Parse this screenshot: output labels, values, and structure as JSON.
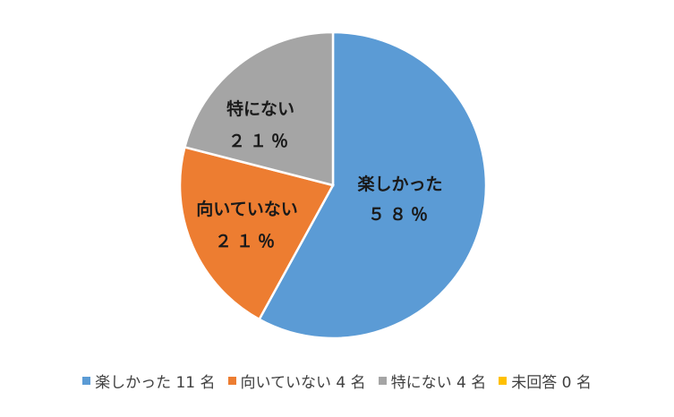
{
  "chart_data": {
    "type": "pie",
    "slices": [
      {
        "label": "楽しかった",
        "value": 58,
        "pct_text": "５８％",
        "color": "#5b9bd5",
        "legend": "楽しかった 11 名"
      },
      {
        "label": "向いていない",
        "value": 21,
        "pct_text": "２１％",
        "color": "#ed7d31",
        "legend": "向いていない 4 名"
      },
      {
        "label": "特にない",
        "value": 21,
        "pct_text": "２１％",
        "color": "#a5a5a5",
        "legend": "特にない 4 名"
      },
      {
        "label": "未回答",
        "value": 0,
        "pct_text": "",
        "color": "#ffc000",
        "legend": "未回答 0 名"
      }
    ],
    "legend_position": "bottom"
  }
}
